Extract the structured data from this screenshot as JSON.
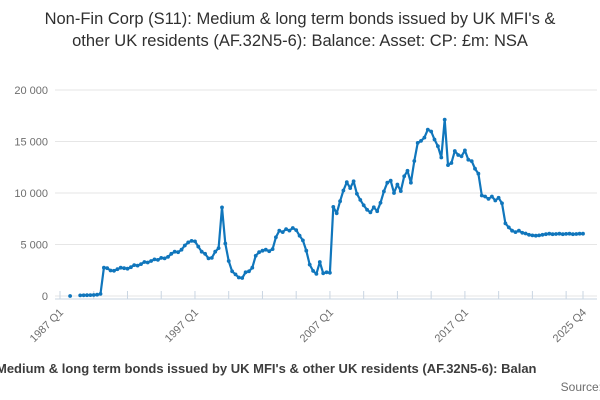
{
  "title": "Non-Fin Corp (S11): Medium & long term bonds issued by UK MFI's & other UK residents (AF.32N5-6): Balance: Asset: CP: £m: NSA",
  "footer": {
    "series_label": "Medium & long term bonds issued by UK MFI's & other UK residents (AF.32N5-6): Balan",
    "source_label": "Source:"
  },
  "colors": {
    "line": "#1076bc",
    "grid": "#e6e6e6",
    "axis": "#c9d5e2",
    "axis_label": "#6e6e6e",
    "title": "#2f2f2f"
  },
  "chart_data": {
    "type": "line",
    "title": "Non-Fin Corp (S11): Medium & long term bonds issued by UK MFI's & other UK residents (AF.32N5-6): Balance: Asset: CP: £m: NSA",
    "unit": "£m",
    "grid": "horizontal",
    "legend_position": "bottom",
    "x_axis": {
      "frequency": "quarterly",
      "start": "1987 Q1",
      "end": "2025 Q4",
      "tick_labels": [
        "1987 Q1",
        "1997 Q1",
        "2007 Q1",
        "2017 Q1",
        "2025 Q4"
      ],
      "tick_quarter_indices": [
        0,
        40,
        80,
        120,
        155
      ],
      "minor_tick_every_quarters": 10,
      "label_rotation_deg": -45
    },
    "y_axis": {
      "min": 0,
      "max": 20000,
      "ticks": [
        0,
        5000,
        10000,
        15000,
        20000
      ],
      "tick_labels": [
        "0",
        "5 000",
        "10 000",
        "15 000",
        "20 000"
      ]
    },
    "series": [
      {
        "name": "Medium & long term bonds issued by UK MFI's & other UK residents (AF.32N5-6): Balance: Asset: CP: £m: NSA",
        "marker": "circle",
        "values": [
          null,
          null,
          null,
          0,
          null,
          null,
          60,
          70,
          80,
          90,
          100,
          130,
          200,
          2750,
          2700,
          2480,
          2450,
          2600,
          2750,
          2700,
          2650,
          2800,
          3000,
          2950,
          3100,
          3300,
          3250,
          3400,
          3550,
          3500,
          3700,
          3650,
          3800,
          4100,
          4300,
          4250,
          4500,
          4900,
          5200,
          5350,
          5300,
          4800,
          4300,
          4100,
          3650,
          3700,
          4300,
          4650,
          8600,
          5100,
          3400,
          2400,
          2100,
          1800,
          1750,
          2300,
          2400,
          2750,
          3900,
          4250,
          4400,
          4500,
          4350,
          4550,
          5700,
          6340,
          6200,
          6500,
          6350,
          6600,
          6400,
          5850,
          5400,
          4400,
          3050,
          2440,
          2150,
          3300,
          2200,
          2300,
          2250,
          8650,
          8030,
          9200,
          10240,
          11050,
          10480,
          11140,
          9920,
          9330,
          8810,
          8370,
          8120,
          8610,
          8230,
          9050,
          10160,
          11000,
          11190,
          10000,
          10830,
          10180,
          11620,
          12160,
          11000,
          13110,
          14860,
          15060,
          15380,
          16160,
          15970,
          15190,
          14540,
          13450,
          17130,
          12710,
          12910,
          14080,
          13690,
          13560,
          14140,
          13230,
          13100,
          12360,
          11870,
          9760,
          9660,
          9430,
          9660,
          9270,
          9530,
          9000,
          7050,
          6660,
          6340,
          6200,
          6340,
          6140,
          6070,
          5940,
          5880,
          5850,
          5880,
          5940,
          6000,
          6050,
          6000,
          6020,
          6050,
          6000,
          6030,
          6050,
          6000,
          6020,
          6050,
          6050
        ]
      }
    ]
  }
}
